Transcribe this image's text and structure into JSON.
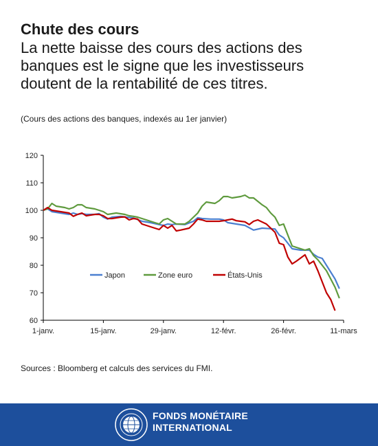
{
  "header": {
    "title": "Chute des cours",
    "subtitle_lines": [
      "La nette baisse des cours des actions des",
      "banques est le signe que les investisseurs",
      "doutent de la rentabilité de ces titres."
    ],
    "note": "(Cours des actions des banques, indexés au 1er janvier)"
  },
  "source": "Sources : Bloomberg et calculs des services du FMI.",
  "footer": {
    "org_line1": "FONDS MONÉTAIRE",
    "org_line2": "INTERNATIONAL",
    "background": "#1d4f9c"
  },
  "chart_data": {
    "type": "line",
    "ylim": [
      60,
      120
    ],
    "yticks": [
      60,
      70,
      80,
      90,
      100,
      110,
      120
    ],
    "xlim": [
      0,
      70
    ],
    "xticks": [
      {
        "t": 0,
        "label": "1-janv."
      },
      {
        "t": 14,
        "label": "15-janv."
      },
      {
        "t": 28,
        "label": "29-janv."
      },
      {
        "t": 42,
        "label": "12-févr."
      },
      {
        "t": 56,
        "label": "26-févr."
      },
      {
        "t": 70,
        "label": "11-mars"
      }
    ],
    "legend_position": "bottom-left",
    "grid": false,
    "series": [
      {
        "name": "Japon",
        "color": "#4a7fd0",
        "points": [
          [
            0,
            100
          ],
          [
            1,
            100.5
          ],
          [
            2,
            99.5
          ],
          [
            4,
            99
          ],
          [
            6,
            98.5
          ],
          [
            7,
            99
          ],
          [
            8,
            98.5
          ],
          [
            9,
            98.8
          ],
          [
            10,
            98.5
          ],
          [
            11,
            98.5
          ],
          [
            12,
            98.5
          ],
          [
            13,
            98.8
          ],
          [
            14,
            97.5
          ],
          [
            15,
            96.8
          ],
          [
            16,
            97.5
          ],
          [
            18,
            97.8
          ],
          [
            19,
            97.6
          ],
          [
            21,
            97.2
          ],
          [
            23,
            96
          ],
          [
            25,
            95.5
          ],
          [
            27,
            94.8
          ],
          [
            28,
            94.5
          ],
          [
            29,
            95
          ],
          [
            30,
            94.8
          ],
          [
            31,
            95
          ],
          [
            33,
            94.8
          ],
          [
            35,
            96
          ],
          [
            36,
            97.3
          ],
          [
            37,
            97
          ],
          [
            39,
            96.8
          ],
          [
            40,
            96.8
          ],
          [
            41,
            96.8
          ],
          [
            42,
            96.5
          ],
          [
            43,
            95.5
          ],
          [
            45,
            95
          ],
          [
            47,
            94.5
          ],
          [
            49,
            92.8
          ],
          [
            51,
            93.5
          ],
          [
            53,
            93.3
          ],
          [
            54,
            93.2
          ],
          [
            55,
            91
          ],
          [
            56,
            90
          ],
          [
            58,
            86
          ],
          [
            60,
            85.5
          ],
          [
            62,
            85.5
          ],
          [
            63,
            84
          ],
          [
            64,
            83
          ],
          [
            65,
            82.5
          ],
          [
            66,
            80
          ],
          [
            68,
            75
          ],
          [
            69,
            71.5
          ]
        ]
      },
      {
        "name": "Zone euro",
        "color": "#5e9a3d",
        "points": [
          [
            0,
            100
          ],
          [
            1,
            100.5
          ],
          [
            2,
            102.5
          ],
          [
            3,
            101.5
          ],
          [
            5,
            101
          ],
          [
            6,
            100.5
          ],
          [
            7,
            101
          ],
          [
            8,
            102
          ],
          [
            9,
            102
          ],
          [
            10,
            101
          ],
          [
            12,
            100.5
          ],
          [
            13,
            100
          ],
          [
            14,
            99.5
          ],
          [
            15,
            98.5
          ],
          [
            17,
            99
          ],
          [
            19,
            98.5
          ],
          [
            20,
            98
          ],
          [
            21,
            97.8
          ],
          [
            22,
            97.5
          ],
          [
            24,
            96.5
          ],
          [
            26,
            95.5
          ],
          [
            27,
            95
          ],
          [
            28,
            96.5
          ],
          [
            29,
            97
          ],
          [
            30,
            96
          ],
          [
            31,
            95
          ],
          [
            33,
            95
          ],
          [
            34,
            96
          ],
          [
            36,
            99
          ],
          [
            37,
            101.5
          ],
          [
            38,
            103
          ],
          [
            40,
            102.5
          ],
          [
            41,
            103.5
          ],
          [
            42,
            105
          ],
          [
            43,
            105
          ],
          [
            44,
            104.5
          ],
          [
            46,
            105
          ],
          [
            47,
            105.5
          ],
          [
            48,
            104.5
          ],
          [
            49,
            104.5
          ],
          [
            51,
            102
          ],
          [
            52,
            101
          ],
          [
            53,
            99
          ],
          [
            54,
            97.5
          ],
          [
            55,
            94.5
          ],
          [
            56,
            95
          ],
          [
            57,
            91
          ],
          [
            58,
            87
          ],
          [
            60,
            86
          ],
          [
            61,
            85.5
          ],
          [
            62,
            86
          ],
          [
            63,
            83.5
          ],
          [
            64,
            82
          ],
          [
            66,
            78
          ],
          [
            68,
            72
          ],
          [
            69,
            68
          ]
        ]
      },
      {
        "name": "États-Unis",
        "color": "#c00000",
        "points": [
          [
            0,
            100
          ],
          [
            1,
            101
          ],
          [
            2,
            100
          ],
          [
            4,
            99.5
          ],
          [
            6,
            99
          ],
          [
            7,
            97.8
          ],
          [
            8,
            98.5
          ],
          [
            9,
            99
          ],
          [
            10,
            98
          ],
          [
            12,
            98.5
          ],
          [
            13,
            98.5
          ],
          [
            14,
            98
          ],
          [
            15,
            97
          ],
          [
            16,
            97
          ],
          [
            18,
            97.5
          ],
          [
            19,
            97.6
          ],
          [
            20,
            96.5
          ],
          [
            21,
            97
          ],
          [
            22,
            96.8
          ],
          [
            23,
            95
          ],
          [
            24,
            94.5
          ],
          [
            26,
            93.5
          ],
          [
            27,
            93
          ],
          [
            28,
            94.5
          ],
          [
            29,
            93.5
          ],
          [
            30,
            94.5
          ],
          [
            31,
            92.5
          ],
          [
            32,
            92.8
          ],
          [
            34,
            93.5
          ],
          [
            35,
            95
          ],
          [
            36,
            96.8
          ],
          [
            37,
            96.5
          ],
          [
            38,
            96
          ],
          [
            40,
            96
          ],
          [
            41,
            96
          ],
          [
            42,
            96.2
          ],
          [
            43,
            96.5
          ],
          [
            44,
            96.8
          ],
          [
            45,
            96.2
          ],
          [
            46,
            96
          ],
          [
            47,
            95.8
          ],
          [
            48,
            94.8
          ],
          [
            49,
            96
          ],
          [
            50,
            96.5
          ],
          [
            52,
            95
          ],
          [
            53,
            93.5
          ],
          [
            54,
            92
          ],
          [
            55,
            88
          ],
          [
            56,
            87.5
          ],
          [
            57,
            83
          ],
          [
            58,
            80.5
          ],
          [
            59,
            81.5
          ],
          [
            61,
            83.8
          ],
          [
            62,
            80.5
          ],
          [
            63,
            81.5
          ],
          [
            64,
            78
          ],
          [
            66,
            70
          ],
          [
            67,
            67.5
          ],
          [
            68,
            63.5
          ]
        ]
      }
    ]
  }
}
